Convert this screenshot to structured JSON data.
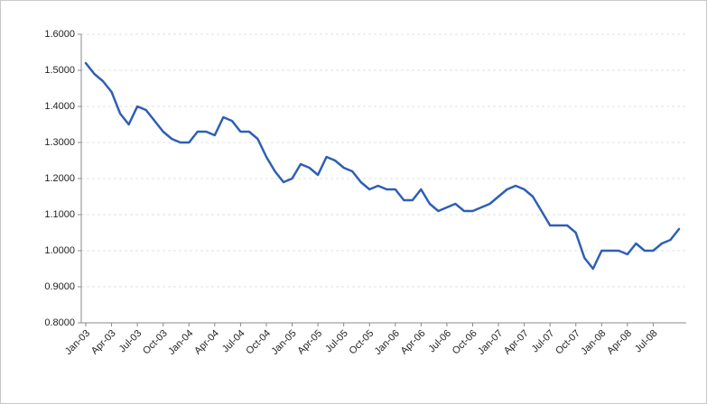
{
  "chart_data": {
    "type": "line",
    "categories": [
      "Jan-03",
      null,
      null,
      "Apr-03",
      null,
      null,
      "Jul-03",
      null,
      null,
      "Oct-03",
      null,
      null,
      "Jan-04",
      null,
      null,
      "Apr-04",
      null,
      null,
      "Jul-04",
      null,
      null,
      "Oct-04",
      null,
      null,
      "Jan-05",
      null,
      null,
      "Apr-05",
      null,
      null,
      "Jul-05",
      null,
      null,
      "Oct-05",
      null,
      null,
      "Jan-06",
      null,
      null,
      "Apr-06",
      null,
      null,
      "Jul-06",
      null,
      null,
      "Oct-06",
      null,
      null,
      "Jan-07",
      null,
      null,
      "Apr-07",
      null,
      null,
      "Jul-07",
      null,
      null,
      "Oct-07",
      null,
      null,
      "Jan-08",
      null,
      null,
      "Apr-08",
      null,
      null,
      "Jul-08",
      null,
      null,
      null
    ],
    "series": [
      {
        "color": "#2e5fb4",
        "values": [
          1.52,
          1.49,
          1.47,
          1.44,
          1.38,
          1.35,
          1.4,
          1.39,
          1.36,
          1.33,
          1.31,
          1.3,
          1.3,
          1.33,
          1.33,
          1.32,
          1.37,
          1.36,
          1.33,
          1.33,
          1.31,
          1.26,
          1.22,
          1.19,
          1.2,
          1.24,
          1.23,
          1.21,
          1.26,
          1.25,
          1.23,
          1.22,
          1.19,
          1.17,
          1.18,
          1.17,
          1.17,
          1.14,
          1.14,
          1.17,
          1.13,
          1.11,
          1.12,
          1.13,
          1.11,
          1.11,
          1.12,
          1.13,
          1.15,
          1.17,
          1.18,
          1.17,
          1.15,
          1.11,
          1.07,
          1.07,
          1.07,
          1.05,
          0.98,
          0.95,
          1.0,
          1.0,
          1.0,
          0.99,
          1.02,
          1.0,
          1.0,
          1.02,
          1.03,
          1.06
        ]
      }
    ],
    "ylim": [
      0.8,
      1.6
    ],
    "yticks": [
      {
        "value": 0.8,
        "label": "0.8000"
      },
      {
        "value": 0.9,
        "label": "0.9000"
      },
      {
        "value": 1.0,
        "label": "1.0000"
      },
      {
        "value": 1.1,
        "label": "1.1000"
      },
      {
        "value": 1.2,
        "label": "1.2000"
      },
      {
        "value": 1.3,
        "label": "1.3000"
      },
      {
        "value": 1.4,
        "label": "1.4000"
      },
      {
        "value": 1.5,
        "label": "1.5000"
      },
      {
        "value": 1.6,
        "label": "1.6000"
      }
    ],
    "grid": true
  }
}
